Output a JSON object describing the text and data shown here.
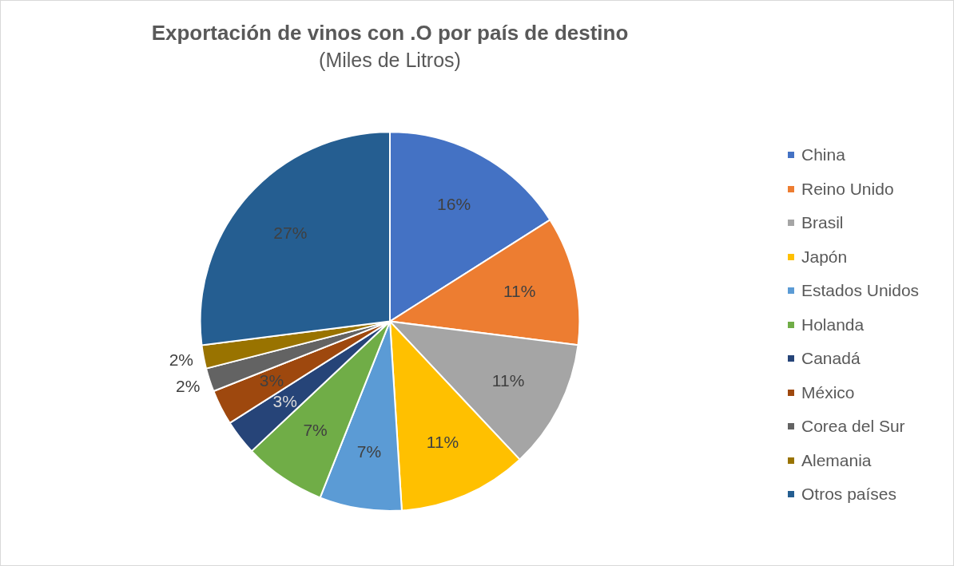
{
  "chart_data": {
    "type": "pie",
    "title": "Exportación de vinos con .O por país de destino",
    "subtitle": "(Miles de Litros)",
    "categories": [
      "China",
      "Reino Unido",
      "Brasil",
      "Japón",
      "Estados Unidos",
      "Holanda",
      "Canadá",
      "México",
      "Corea del Sur",
      "Alemania",
      "Otros países"
    ],
    "values": [
      16,
      11,
      11,
      11,
      7,
      7,
      3,
      3,
      2,
      2,
      27
    ],
    "colors": [
      "#4472c4",
      "#ed7d31",
      "#a5a5a5",
      "#ffc000",
      "#5b9bd5",
      "#70ad47",
      "#264478",
      "#9e480e",
      "#636363",
      "#997300",
      "#255e91"
    ],
    "value_labels": [
      "16%",
      "11%",
      "11%",
      "11%",
      "7%",
      "7%",
      "3%",
      "3%",
      "2%",
      "2%",
      "27%"
    ],
    "legend": "right"
  }
}
